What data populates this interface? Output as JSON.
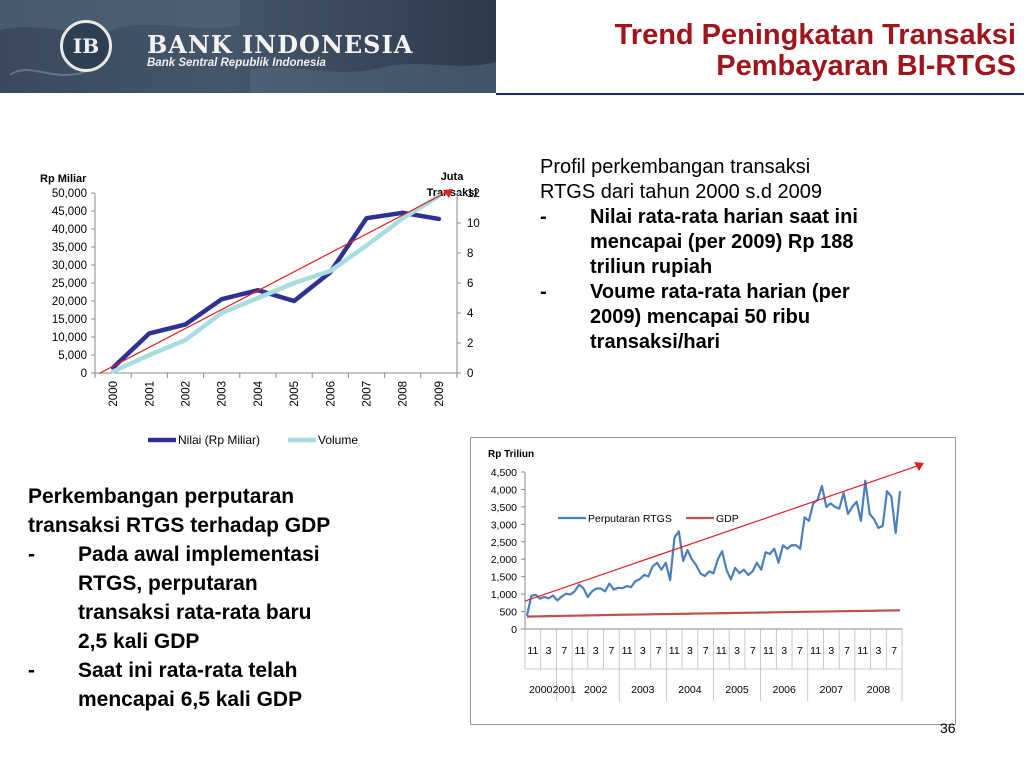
{
  "header": {
    "bank_name": "BANK INDONESIA",
    "bank_subtitle": "Bank Sentral Republik Indonesia",
    "logo_text": "IB",
    "title_line1": "Trend Peningkatan Transaksi",
    "title_line2": "Pembayaran BI-RTGS"
  },
  "profil": {
    "heading_line1": "Profil perkembangan transaksi",
    "heading_line2": "RTGS dari tahun 2000 s.d 2009",
    "bullets": [
      {
        "dash": "-",
        "lines": [
          "Nilai rata-rata harian  saat ini",
          "mencapai (per 2009) Rp 188",
          "triliun rupiah"
        ]
      },
      {
        "dash": "-",
        "lines": [
          "Voume rata-rata harian (per",
          "2009) mencapai   50 ribu",
          "transaksi/hari"
        ]
      }
    ]
  },
  "perkembangan": {
    "heading_line1": "Perkembangan perputaran",
    "heading_line2": "transaksi RTGS terhadap GDP",
    "bullets": [
      {
        "dash": "-",
        "lines": [
          "Pada awal implementasi",
          "RTGS, perputaran",
          "transaksi  rata-rata baru",
          "2,5 kali GDP"
        ]
      },
      {
        "dash": "-",
        "lines": [
          "Saat ini  rata-rata telah",
          "mencapai 6,5 kali GDP"
        ]
      }
    ]
  },
  "page_number": "36",
  "chart_data": [
    {
      "type": "line",
      "ylabel_left": "Rp Miliar",
      "ylabel_right_line1": "Juta",
      "ylabel_right_line2": "Transaksi",
      "x": [
        "2000",
        "2001",
        "2002",
        "2003",
        "2004",
        "2005",
        "2006",
        "2007",
        "2008",
        "2009"
      ],
      "y_left_ticks": [
        "0",
        "5,000",
        "10,000",
        "15,000",
        "20,000",
        "25,000",
        "30,000",
        "35,000",
        "40,000",
        "45,000",
        "50,000"
      ],
      "y_right_ticks": [
        "0",
        "2",
        "4",
        "6",
        "8",
        "10",
        "12"
      ],
      "ylim_left": [
        0,
        50000
      ],
      "ylim_right": [
        0,
        12
      ],
      "series": [
        {
          "name": "Nilai (Rp Miliar)",
          "axis": "left",
          "color": "#2e3192",
          "values": [
            1500,
            11000,
            13500,
            20500,
            23000,
            20000,
            28000,
            43000,
            44500,
            42800
          ]
        },
        {
          "name": "Volume",
          "axis": "right",
          "color": "#a8dde0",
          "values": [
            0.1,
            1.2,
            2.2,
            4.0,
            5.0,
            6.0,
            6.8,
            8.5,
            10.3,
            11.8
          ]
        }
      ],
      "trendline": {
        "color": "#e02020",
        "from": [
          2000,
          1800
        ],
        "to": [
          2009,
          50000
        ]
      },
      "legend": "bottom"
    },
    {
      "type": "line",
      "ylabel": "Rp Triliun",
      "y_ticks": [
        "0",
        "500",
        "1,000",
        "1,500",
        "2,000",
        "2,500",
        "3,000",
        "3,500",
        "4,000",
        "4,500"
      ],
      "ylim": [
        0,
        4500
      ],
      "x_month_labels": [
        "11",
        "3",
        "7",
        "11",
        "3",
        "7",
        "11",
        "3",
        "7",
        "11",
        "3",
        "7",
        "11",
        "3",
        "7",
        "11",
        "3",
        "7",
        "11",
        "3",
        "7",
        "11",
        "3",
        "7"
      ],
      "x_year_labels": [
        "2000",
        "2001",
        "2002",
        "2003",
        "2004",
        "2005",
        "2006",
        "2007",
        "2008"
      ],
      "series": [
        {
          "name": "Perputaran RTGS",
          "color": "#4a7fbf",
          "values": [
            380,
            950,
            980,
            870,
            920,
            880,
            960,
            820,
            930,
            1010,
            990,
            1080,
            1270,
            1170,
            920,
            1080,
            1160,
            1160,
            1080,
            1300,
            1130,
            1180,
            1170,
            1230,
            1200,
            1370,
            1430,
            1550,
            1510,
            1800,
            1900,
            1700,
            1900,
            1400,
            2620,
            2800,
            1950,
            2260,
            2000,
            1830,
            1590,
            1520,
            1650,
            1600,
            2000,
            2230,
            1700,
            1420,
            1750,
            1600,
            1700,
            1550,
            1650,
            1900,
            1700,
            2200,
            2150,
            2300,
            1900,
            2400,
            2300,
            2400,
            2400,
            2300,
            3200,
            3100,
            3600,
            3700,
            4100,
            3500,
            3600,
            3500,
            3450,
            3900,
            3300,
            3500,
            3650,
            3100,
            4250,
            3300,
            3150,
            2900,
            2950,
            3950,
            3800,
            2750,
            3950
          ],
          "x_grid_note": ""
        },
        {
          "name": "GDP",
          "color": "#c0504d",
          "values": [
            355,
            358,
            360,
            362,
            365,
            368,
            370,
            372,
            375,
            378,
            380,
            382,
            385,
            388,
            390,
            392,
            395,
            398,
            400,
            402,
            404,
            406,
            408,
            410,
            412,
            414,
            416,
            418,
            420,
            422,
            424,
            426,
            428,
            430,
            432,
            434,
            436,
            438,
            440,
            442,
            444,
            446,
            448,
            450,
            452,
            454,
            456,
            458,
            460,
            462,
            464,
            466,
            468,
            470,
            472,
            474,
            476,
            478,
            480,
            482,
            484,
            486,
            488,
            490,
            492,
            494,
            496,
            498,
            500,
            502,
            504,
            506,
            508,
            510,
            512,
            514,
            516,
            518,
            520,
            522,
            524,
            526,
            528,
            530,
            532,
            534,
            536
          ]
        }
      ],
      "trendline": {
        "color": "#e02020",
        "from_value": 800,
        "to_value": 4700
      },
      "legend": "top-center"
    }
  ]
}
